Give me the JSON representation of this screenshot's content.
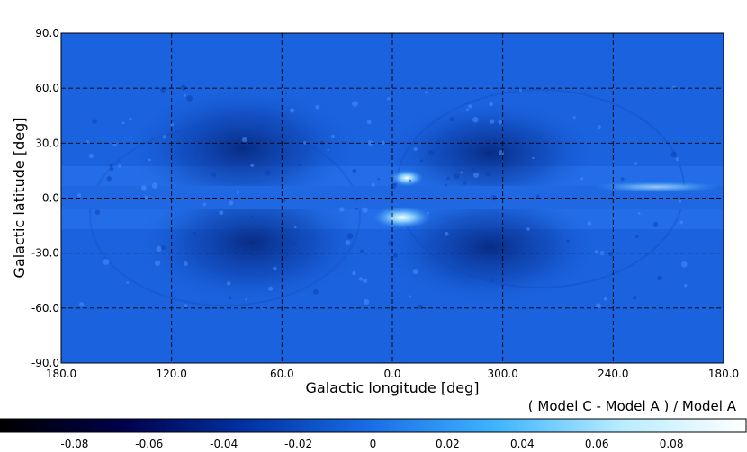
{
  "chart_data": {
    "type": "heatmap",
    "projection": "equirectangular",
    "xlabel": "Galactic longitude [deg]",
    "ylabel": "Galactic latitude [deg]",
    "x_ticks": [
      "180.0",
      "120.0",
      "60.0",
      "0.0",
      "300.0",
      "240.0",
      "180.0"
    ],
    "y_ticks": [
      "90.0",
      "60.0",
      "30.0",
      "0.0",
      "-30.0",
      "-60.0",
      "-90.0"
    ],
    "y_tick_values": [
      90,
      60,
      30,
      0,
      -30,
      -60,
      -90
    ],
    "grid": true,
    "grid_style": "dashed",
    "colorbar": {
      "label": "( Model C - Model A ) / Model A",
      "range": [
        -0.1,
        0.1
      ],
      "ticks": [
        "-0.08",
        "-0.06",
        "-0.04",
        "-0.02",
        "0",
        "0.02",
        "0.04",
        "0.06",
        "0.08"
      ],
      "tick_values": [
        -0.08,
        -0.06,
        -0.04,
        -0.02,
        0,
        0.02,
        0.04,
        0.06,
        0.08
      ],
      "colors": [
        "#000000",
        "#00004d",
        "#0033a6",
        "#1a6fe6",
        "#3fb5ff",
        "#b8ecff",
        "#ffffff"
      ]
    },
    "map_features": {
      "background_value": -0.02,
      "dark_lobes": [
        {
          "l": 70,
          "b": 20,
          "value": -0.06
        },
        {
          "l": 330,
          "b": 20,
          "value": -0.055
        },
        {
          "l": 60,
          "b": -25,
          "value": -0.055
        },
        {
          "l": 330,
          "b": -25,
          "value": -0.06
        }
      ],
      "bright_spots": [
        {
          "l": 357,
          "b": -5,
          "value": 0.08
        },
        {
          "l": 0,
          "b": 10,
          "value": 0.06
        },
        {
          "l": 345,
          "b": 3,
          "value": 0.05
        }
      ],
      "masked_band_deg": 5
    }
  }
}
